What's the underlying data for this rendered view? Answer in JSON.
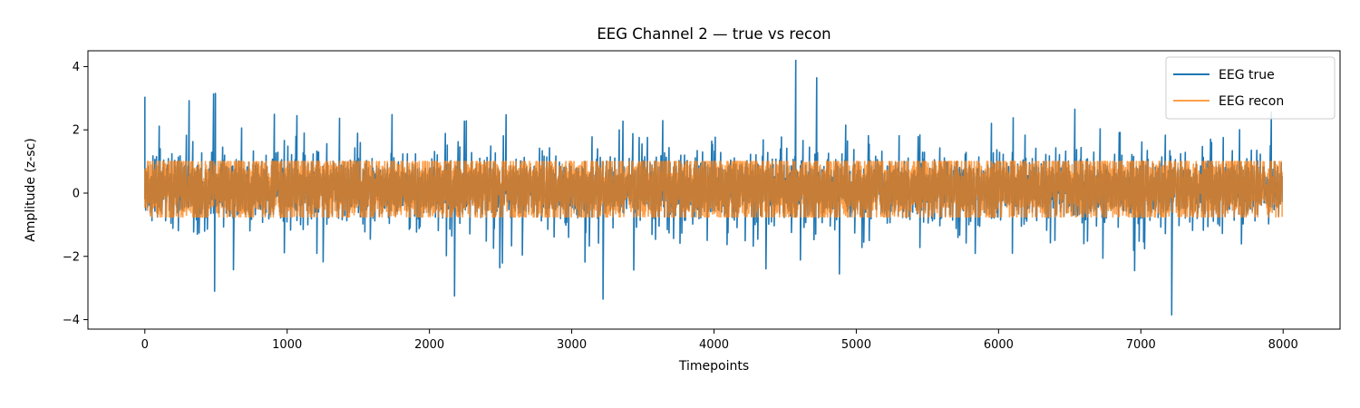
{
  "chart_data": {
    "type": "line",
    "title": "EEG Channel 2 — true vs recon",
    "xlabel": "Timepoints",
    "ylabel": "Amplitude (z-sc)",
    "xlim": [
      -400,
      8400
    ],
    "ylim": [
      -4.3,
      4.5
    ],
    "x_ticks": [
      0,
      1000,
      2000,
      3000,
      4000,
      5000,
      6000,
      7000,
      8000
    ],
    "x_tick_labels": [
      "0",
      "1000",
      "2000",
      "3000",
      "4000",
      "5000",
      "6000",
      "7000",
      "8000"
    ],
    "y_ticks": [
      -4,
      -2,
      0,
      2,
      4
    ],
    "y_tick_labels": [
      "−4",
      "−2",
      "0",
      "2",
      "4"
    ],
    "n_points": 8000,
    "legend_position": "upper right",
    "series": [
      {
        "name": "EEG true",
        "color": "#1f77b4",
        "typical_range": [
          -1.3,
          1.8
        ],
        "overall_min": -3.85,
        "overall_max": 4.2,
        "notable_peaks": [
          {
            "x": 4580,
            "y": 4.2
          },
          {
            "x": 7220,
            "y": -3.85
          },
          {
            "x": 3220,
            "y": -3.35
          },
          {
            "x": 2180,
            "y": -3.25
          },
          {
            "x": 500,
            "y": 3.15
          },
          {
            "x": 490,
            "y": -3.1
          },
          {
            "x": 0,
            "y": 3.05
          }
        ]
      },
      {
        "name": "EEG recon",
        "color": "#ff7f0e",
        "opacity": 0.75,
        "upper_clip": 1.0,
        "lower_clip": -1.0,
        "typical_range": [
          -0.75,
          1.0
        ]
      }
    ]
  }
}
